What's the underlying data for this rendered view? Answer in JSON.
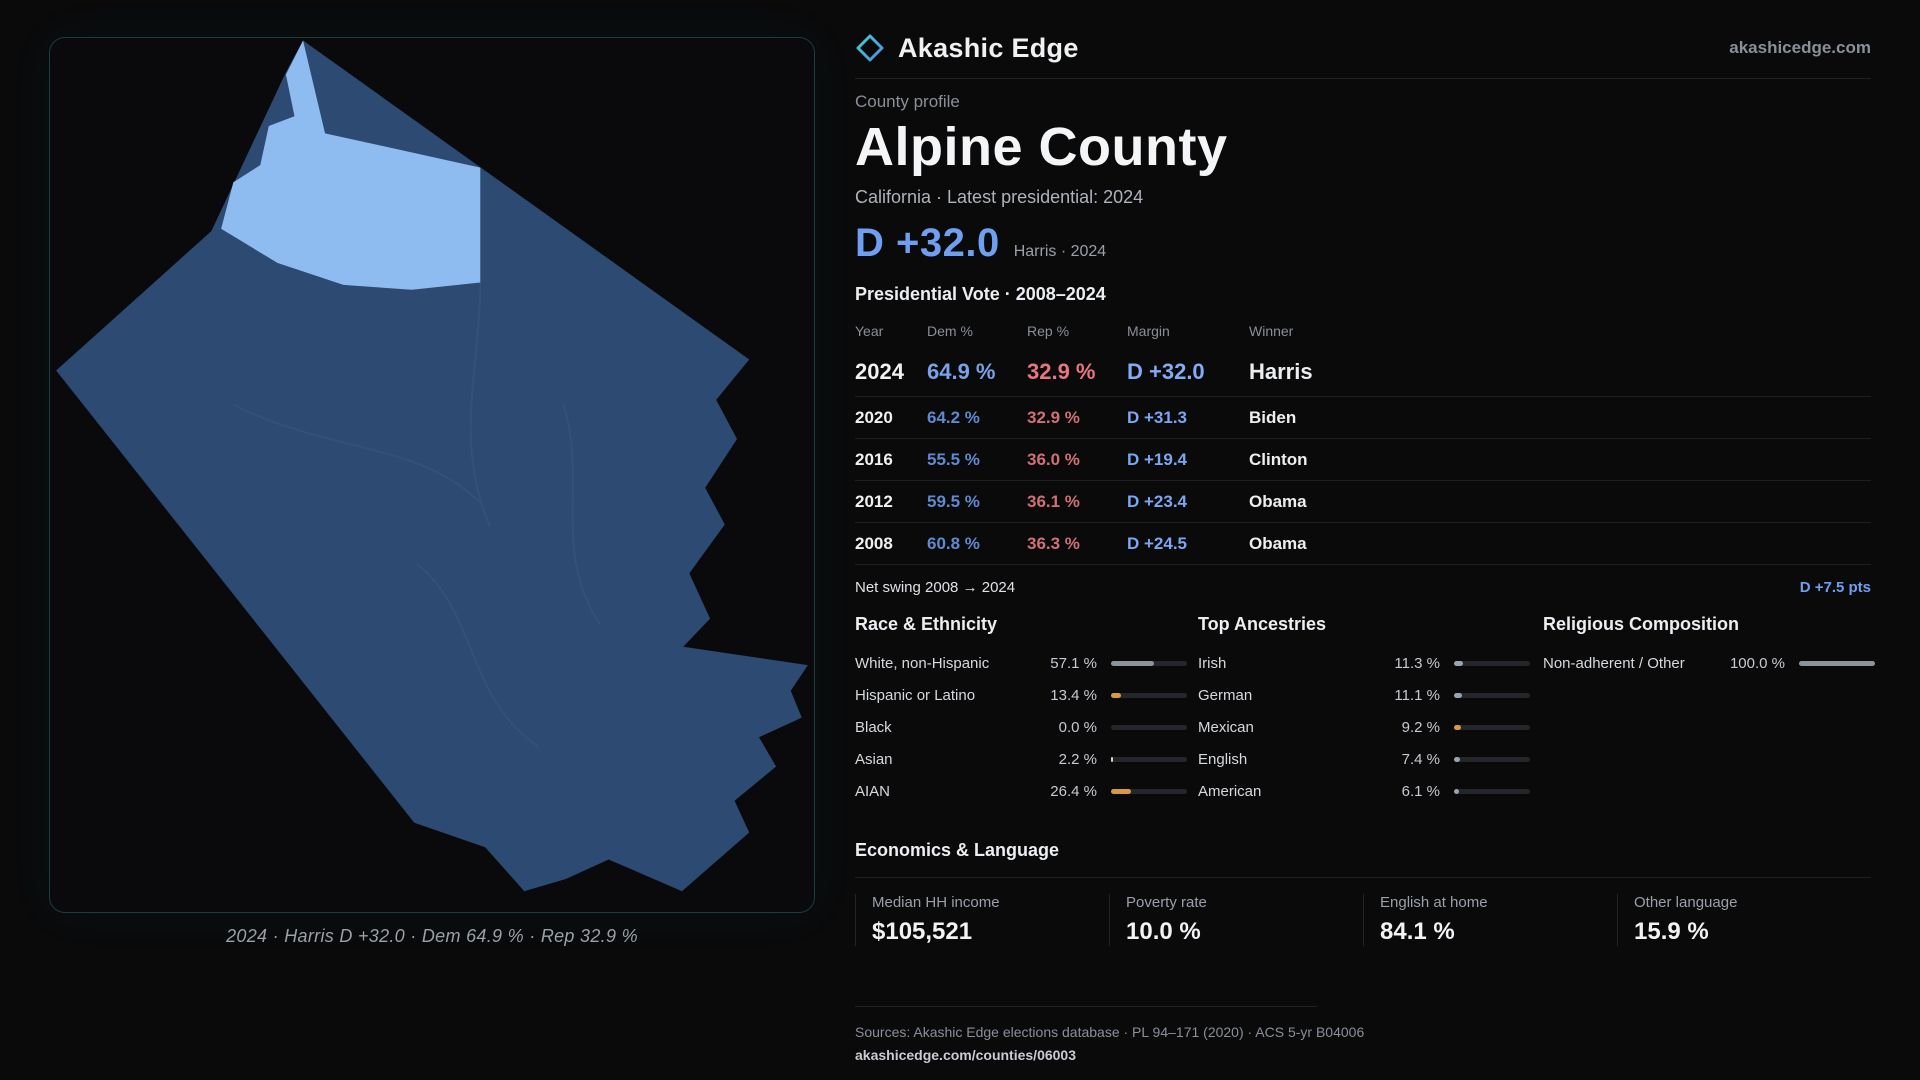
{
  "brand": {
    "name": "Akashic Edge",
    "domain": "akashicedge.com"
  },
  "profile": {
    "kicker": "County profile",
    "title": "Alpine County",
    "subtitle": "California · Latest presidential: 2024",
    "headline_margin": "D +32.0",
    "headline_detail": "Harris · 2024"
  },
  "map": {
    "caption": "2024 · Harris D +32.0 · Dem 64.9 % · Rep 32.9 %"
  },
  "vote_table": {
    "title": "Presidential Vote · 2008–2024",
    "columns": {
      "year": "Year",
      "dem": "Dem %",
      "rep": "Rep %",
      "margin": "Margin",
      "winner": "Winner"
    },
    "rows": [
      {
        "year": "2024",
        "dem": "64.9 %",
        "rep": "32.9 %",
        "margin": "D +32.0",
        "winner": "Harris"
      },
      {
        "year": "2020",
        "dem": "64.2 %",
        "rep": "32.9 %",
        "margin": "D +31.3",
        "winner": "Biden"
      },
      {
        "year": "2016",
        "dem": "55.5 %",
        "rep": "36.0 %",
        "margin": "D +19.4",
        "winner": "Clinton"
      },
      {
        "year": "2012",
        "dem": "59.5 %",
        "rep": "36.1 %",
        "margin": "D +23.4",
        "winner": "Obama"
      },
      {
        "year": "2008",
        "dem": "60.8 %",
        "rep": "36.3 %",
        "margin": "D +24.5",
        "winner": "Obama"
      }
    ],
    "net_swing_label": "Net swing 2008 → 2024",
    "net_swing_value": "D +7.5 pts"
  },
  "race": {
    "title": "Race & Ethnicity",
    "rows": [
      {
        "label": "White, non-Hispanic",
        "value": "57.1 %",
        "pct": 57.1,
        "color": "#8d949c"
      },
      {
        "label": "Hispanic or Latino",
        "value": "13.4 %",
        "pct": 13.4,
        "color": "#d89a3b"
      },
      {
        "label": "Black",
        "value": "0.0 %",
        "pct": 0,
        "color": "#8d949c"
      },
      {
        "label": "Asian",
        "value": "2.2 %",
        "pct": 2.2,
        "color": "#cdd2d8"
      },
      {
        "label": "AIAN",
        "value": "26.4 %",
        "pct": 26.4,
        "color": "#d89a3b"
      }
    ]
  },
  "ancestries": {
    "title": "Top Ancestries",
    "rows": [
      {
        "label": "Irish",
        "value": "11.3 %",
        "pct": 11.3,
        "color": "#9aa3b2"
      },
      {
        "label": "German",
        "value": "11.1 %",
        "pct": 11.1,
        "color": "#9aa3b2"
      },
      {
        "label": "Mexican",
        "value": "9.2 %",
        "pct": 9.2,
        "color": "#d89a3b"
      },
      {
        "label": "English",
        "value": "7.4 %",
        "pct": 7.4,
        "color": "#9aa3b2"
      },
      {
        "label": "American",
        "value": "6.1 %",
        "pct": 6.1,
        "color": "#9aa3b2"
      }
    ]
  },
  "religion": {
    "title": "Religious Composition",
    "rows": [
      {
        "label": "Non-adherent / Other",
        "value": "100.0 %",
        "pct": 100,
        "color": "#8d949c"
      }
    ]
  },
  "economics": {
    "title": "Economics & Language",
    "stats": [
      {
        "label": "Median HH income",
        "value": "$105,521"
      },
      {
        "label": "Poverty rate",
        "value": "10.0 %"
      },
      {
        "label": "English at home",
        "value": "84.1 %"
      },
      {
        "label": "Other language",
        "value": "15.9 %"
      }
    ]
  },
  "footer": {
    "sources": "Sources: Akashic Edge elections database · PL 94–171 (2020) · ACS 5-yr B04006",
    "permalink": "akashicedge.com/counties/06003"
  },
  "colors": {
    "dem_blue": "#6f9ff0",
    "rep_red": "#e8767e",
    "accent_orange": "#d89a3b",
    "map_dark_blue": "#2c4a72",
    "map_light_blue": "#8fbcf0",
    "bar_gray": "#8d949c",
    "panel_border_teal": "#1d3c40"
  }
}
